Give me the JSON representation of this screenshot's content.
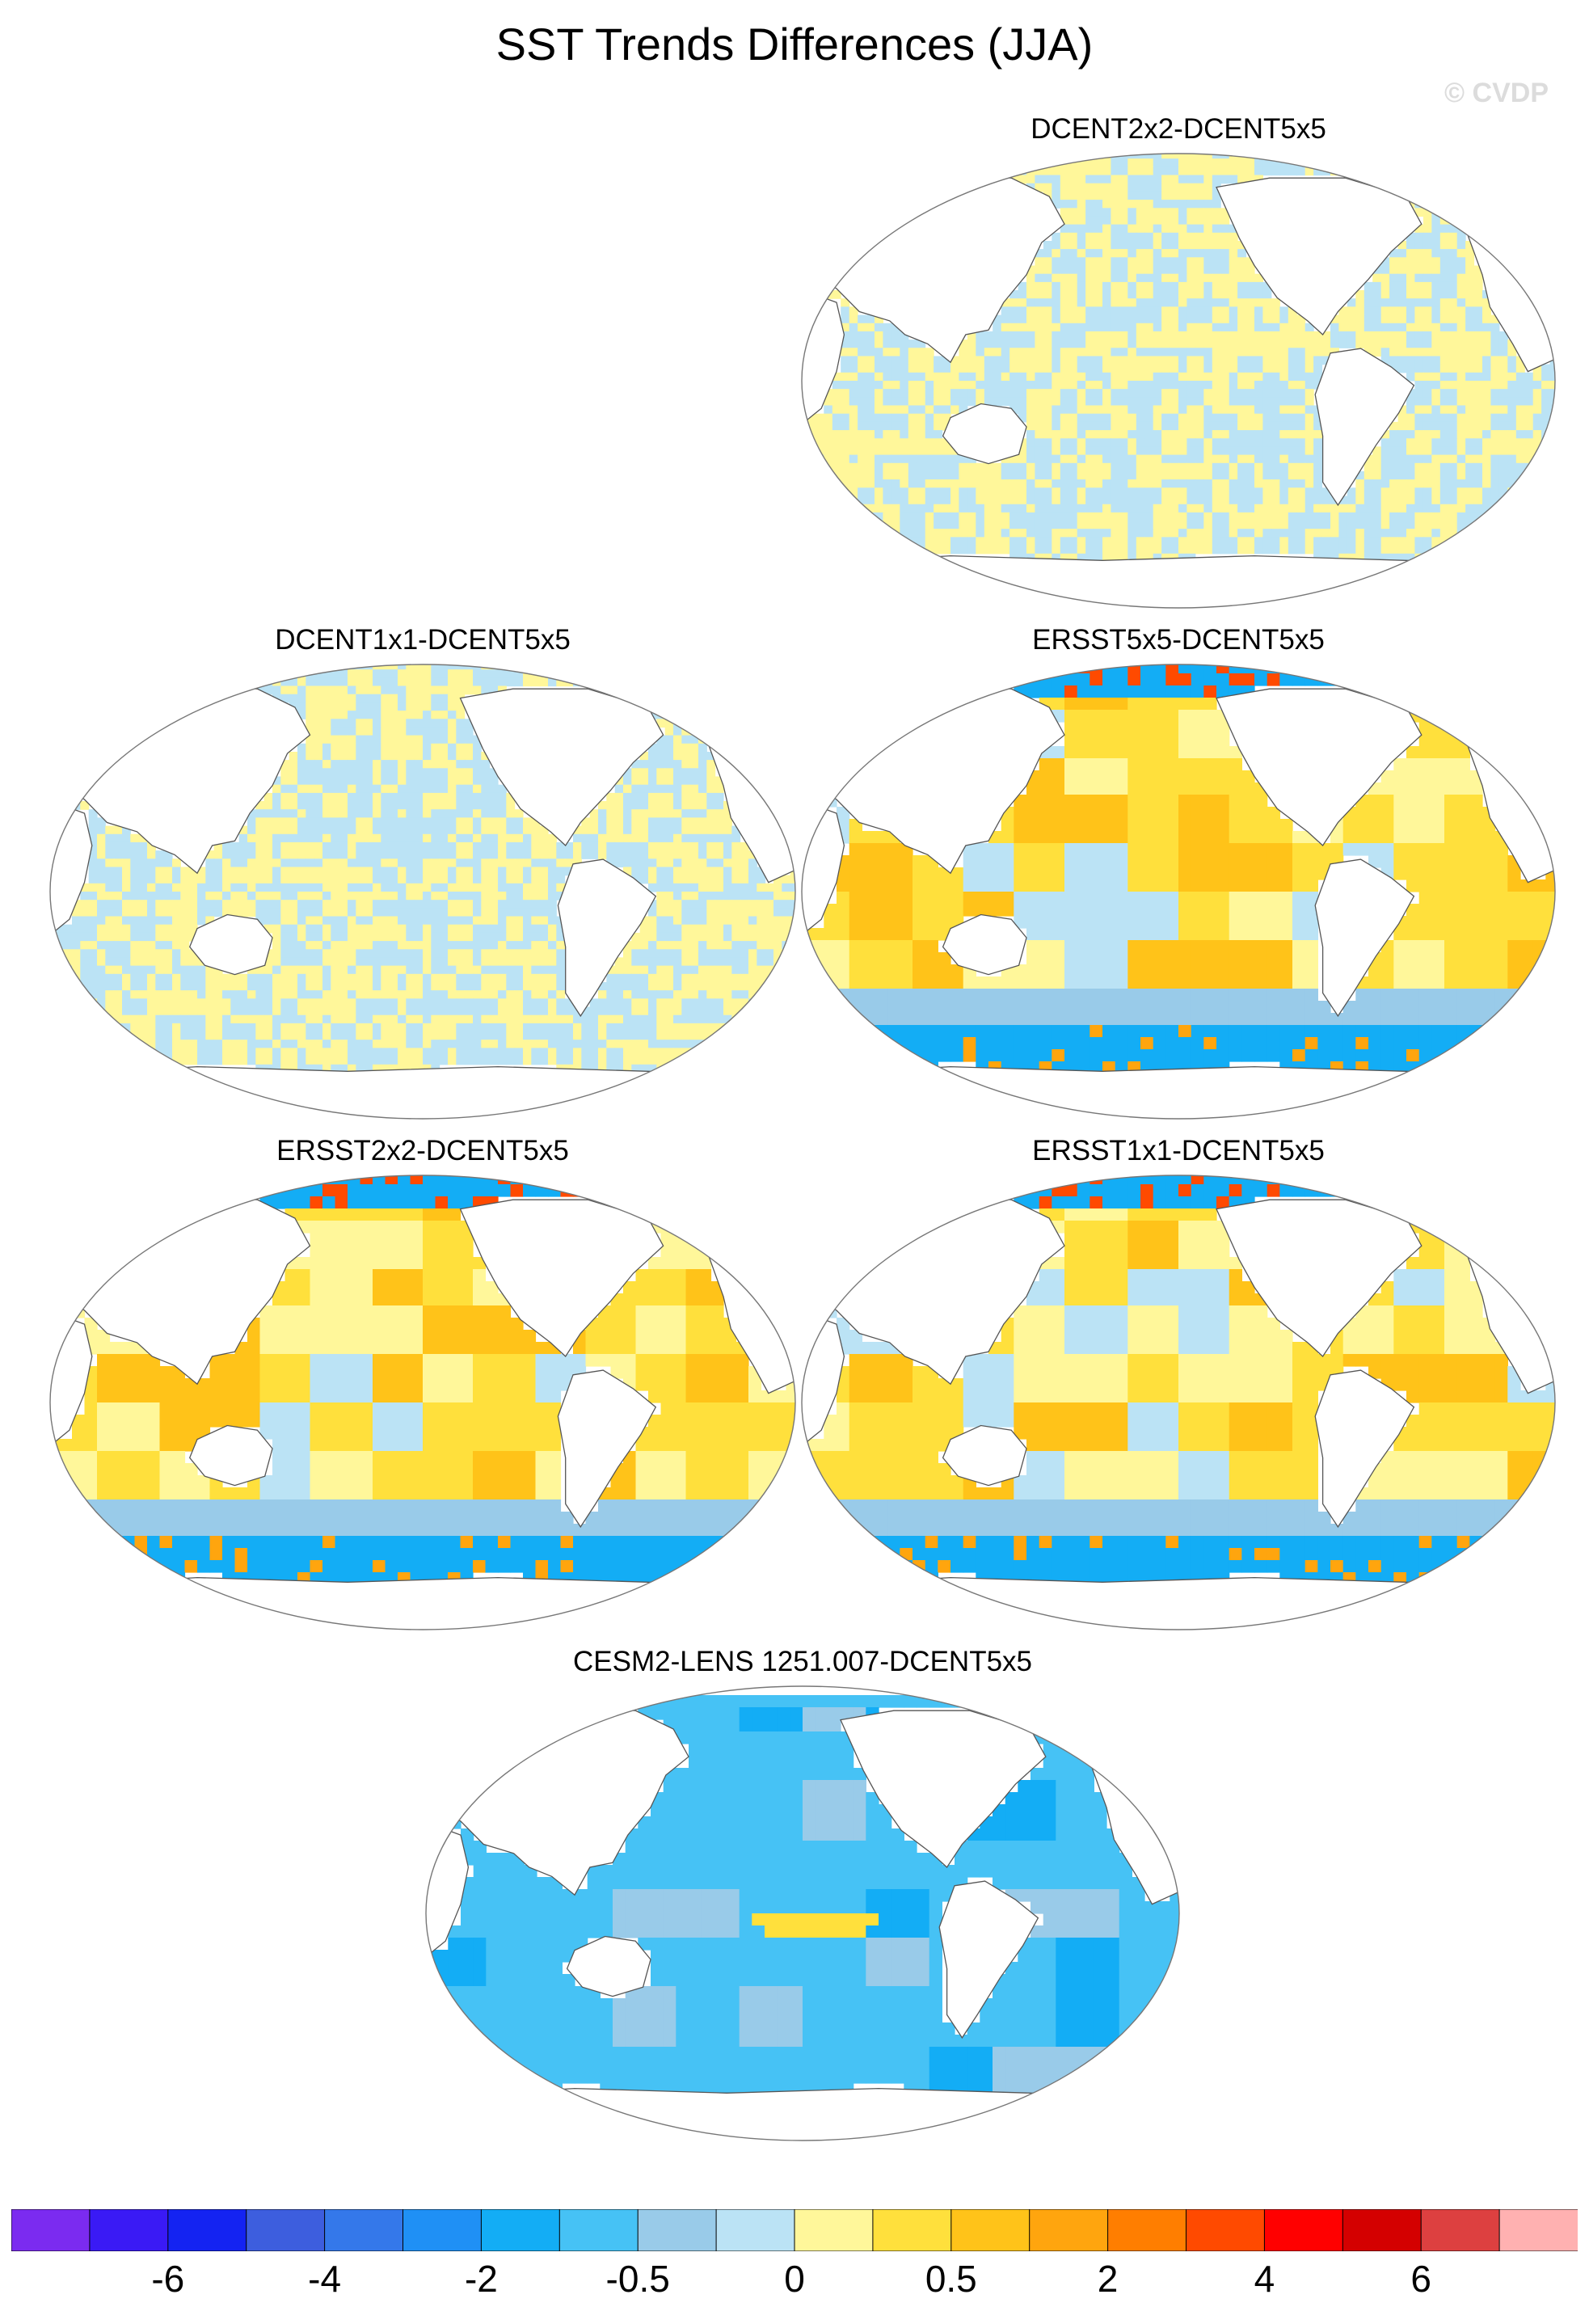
{
  "title": "SST Trends Differences (JJA)",
  "watermark": "© CVDP",
  "panels": [
    {
      "label": "DCENT2x2-DCENT5x5",
      "pattern": "grid"
    },
    {
      "label": "DCENT1x1-DCENT5x5",
      "pattern": "grid"
    },
    {
      "label": "ERSST5x5-DCENT5x5",
      "pattern": "ersst"
    },
    {
      "label": "ERSST2x2-DCENT5x5",
      "pattern": "ersst"
    },
    {
      "label": "ERSST1x1-DCENT5x5",
      "pattern": "ersst"
    },
    {
      "label": "CESM2-LENS 1251.007-DCENT5x5",
      "pattern": "cesm"
    }
  ],
  "colorbar": {
    "colors": [
      "#7b2bf0",
      "#3a1af5",
      "#1423f2",
      "#3d5ede",
      "#3478ea",
      "#1f90f5",
      "#13adf5",
      "#46c2f5",
      "#99cbe9",
      "#bbe3f5",
      "#fff79a",
      "#ffe03c",
      "#ffc319",
      "#ffa50e",
      "#ff7e00",
      "#ff4a00",
      "#ff0000",
      "#d40000",
      "#dd4040",
      "#ffb1b1"
    ],
    "labels": [
      {
        "text": "-6",
        "boundary": 2
      },
      {
        "text": "-4",
        "boundary": 4
      },
      {
        "text": "-2",
        "boundary": 6
      },
      {
        "text": "-0.5",
        "boundary": 8
      },
      {
        "text": "0",
        "boundary": 10
      },
      {
        "text": "0.5",
        "boundary": 12
      },
      {
        "text": "2",
        "boundary": 14
      },
      {
        "text": "4",
        "boundary": 16
      },
      {
        "text": "6",
        "boundary": 18
      }
    ]
  }
}
